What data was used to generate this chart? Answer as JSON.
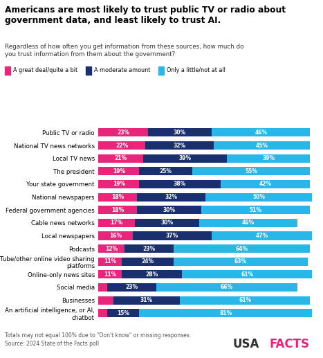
{
  "title": "Americans are most likely to trust public TV or radio about\ngovernment data, and least likely to trust AI.",
  "subtitle": "Regardless of how often you get information from these sources, how much do\nyou trust information from them about the government?",
  "legend_labels": [
    "A great deal/quite a bit",
    "A moderate amount",
    "Only a little/not at all"
  ],
  "colors": [
    "#e8257b",
    "#1a2f6e",
    "#29b6e8"
  ],
  "categories": [
    "Public TV or radio",
    "National TV news networks",
    "Local TV news",
    "The president",
    "Your state government",
    "National newspapers",
    "Federal government agencies",
    "Cable news networks",
    "Local newspapers",
    "Podcasts",
    "YouTube/other online video sharing\nplatforms",
    "Online-only news sites",
    "Social media",
    "Businesses",
    "An artificial intelligence, or AI,\nchatbot"
  ],
  "values": [
    [
      23,
      30,
      46
    ],
    [
      22,
      32,
      45
    ],
    [
      21,
      39,
      39
    ],
    [
      19,
      25,
      55
    ],
    [
      19,
      38,
      42
    ],
    [
      18,
      32,
      50
    ],
    [
      18,
      30,
      51
    ],
    [
      17,
      30,
      46
    ],
    [
      16,
      37,
      47
    ],
    [
      12,
      23,
      64
    ],
    [
      11,
      24,
      63
    ],
    [
      11,
      28,
      61
    ],
    [
      4,
      23,
      66
    ],
    [
      7,
      31,
      61
    ],
    [
      4,
      15,
      81
    ]
  ],
  "footnote": "Totals may not equal 100% due to \"Don't know\" or missing responses.",
  "source": "Source: 2024 State of the Facts poll",
  "usa_color": "#333333",
  "facts_color": "#e8257b",
  "bg_color": "#ffffff",
  "subtitle_color": "#333333",
  "footnote_color": "#555555"
}
